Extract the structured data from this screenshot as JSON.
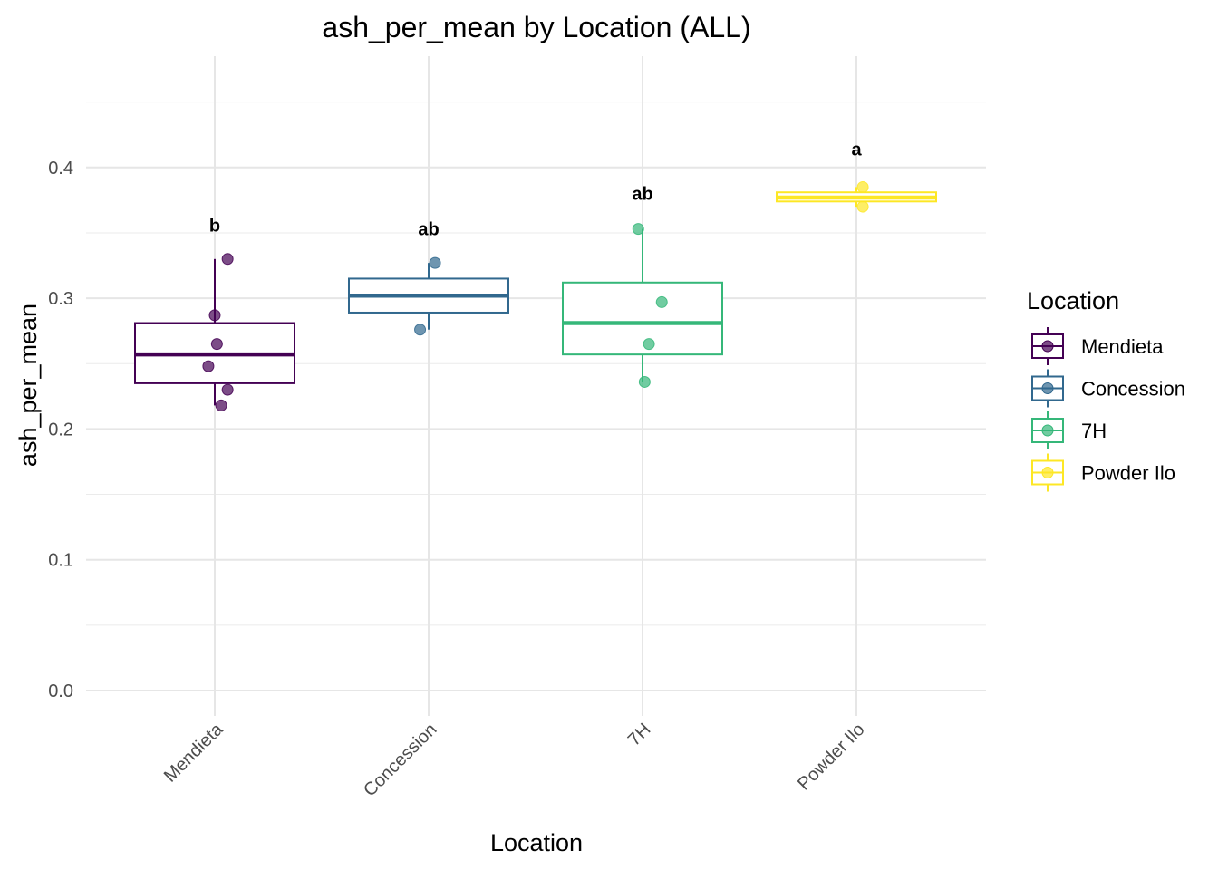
{
  "chart_data": {
    "type": "box",
    "title": "ash_per_mean by Location (ALL)",
    "xlabel": "Location",
    "ylabel": "ash_per_mean",
    "ylim": [
      -0.02,
      0.47
    ],
    "yticks": [
      0.0,
      0.1,
      0.2,
      0.3,
      0.4
    ],
    "ytick_labels": [
      "0.0",
      "0.1",
      "0.2",
      "0.3",
      "0.4"
    ],
    "grid": true,
    "legend": {
      "title": "Location",
      "position": "right"
    },
    "categories": [
      "Mendieta",
      "Concession",
      "7H",
      "Powder Ilo"
    ],
    "groups": [
      {
        "name": "Mendieta",
        "color": "#440154",
        "box": {
          "min": 0.218,
          "q1": 0.235,
          "median": 0.257,
          "q3": 0.281,
          "max": 0.33
        },
        "points": [
          {
            "offset": 0.06,
            "y": 0.33
          },
          {
            "offset": 0.0,
            "y": 0.287
          },
          {
            "offset": 0.01,
            "y": 0.265
          },
          {
            "offset": -0.03,
            "y": 0.248
          },
          {
            "offset": 0.06,
            "y": 0.23
          },
          {
            "offset": 0.03,
            "y": 0.218
          }
        ],
        "letter": "b",
        "letter_y": 0.356
      },
      {
        "name": "Concession",
        "color": "#31688e",
        "box": {
          "min": 0.276,
          "q1": 0.289,
          "median": 0.302,
          "q3": 0.315,
          "max": 0.327
        },
        "points": [
          {
            "offset": 0.03,
            "y": 0.327
          },
          {
            "offset": -0.04,
            "y": 0.276
          }
        ],
        "letter": "ab",
        "letter_y": 0.353
      },
      {
        "name": "7H",
        "color": "#35b779",
        "box": {
          "min": 0.236,
          "q1": 0.257,
          "median": 0.281,
          "q3": 0.312,
          "max": 0.353
        },
        "points": [
          {
            "offset": -0.02,
            "y": 0.353
          },
          {
            "offset": 0.09,
            "y": 0.297
          },
          {
            "offset": 0.03,
            "y": 0.265
          },
          {
            "offset": 0.01,
            "y": 0.236
          }
        ],
        "letter": "ab",
        "letter_y": 0.38
      },
      {
        "name": "Powder Ilo",
        "color": "#fde725",
        "box": {
          "min": 0.37,
          "q1": 0.374,
          "median": 0.377,
          "q3": 0.381,
          "max": 0.385
        },
        "points": [
          {
            "offset": 0.03,
            "y": 0.385
          },
          {
            "offset": 0.03,
            "y": 0.37
          }
        ],
        "letter": "a",
        "letter_y": 0.414
      }
    ]
  }
}
